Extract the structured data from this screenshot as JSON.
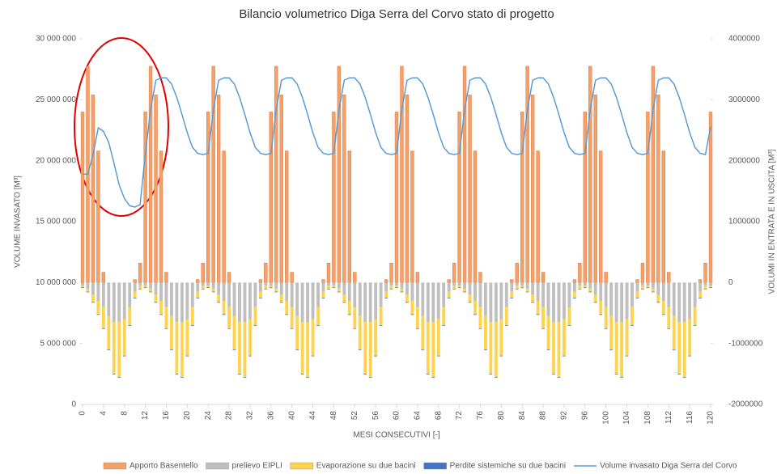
{
  "chart_data": {
    "type": "bar-line",
    "title": "Bilancio volumetrico  Diga Serra del Corvo stato di progetto",
    "xlabel": "MESI CONSECUTIVI [-]",
    "ylabel": "VOLUME INVASATO [M³]",
    "y2label": "VOLUMI IN ENTRATA E IN USCITA [M³]",
    "x": [
      0,
      1,
      2,
      3,
      4,
      5,
      6,
      7,
      8,
      9,
      10,
      11,
      12,
      13,
      14,
      15,
      16,
      17,
      18,
      19,
      20,
      21,
      22,
      23,
      24,
      25,
      26,
      27,
      28,
      29,
      30,
      31,
      32,
      33,
      34,
      35,
      36,
      37,
      38,
      39,
      40,
      41,
      42,
      43,
      44,
      45,
      46,
      47,
      48,
      49,
      50,
      51,
      52,
      53,
      54,
      55,
      56,
      57,
      58,
      59,
      60,
      61,
      62,
      63,
      64,
      65,
      66,
      67,
      68,
      69,
      70,
      71,
      72,
      73,
      74,
      75,
      76,
      77,
      78,
      79,
      80,
      81,
      82,
      83,
      84,
      85,
      86,
      87,
      88,
      89,
      90,
      91,
      92,
      93,
      94,
      95,
      96,
      97,
      98,
      99,
      100,
      101,
      102,
      103,
      104,
      105,
      106,
      107,
      108,
      109,
      110,
      111,
      112,
      113,
      114,
      115,
      116,
      117,
      118,
      119,
      120
    ],
    "xlim": [
      0,
      120
    ],
    "xticks": [
      0,
      4,
      8,
      12,
      16,
      20,
      24,
      28,
      32,
      36,
      40,
      44,
      48,
      52,
      56,
      60,
      64,
      68,
      72,
      76,
      80,
      84,
      88,
      92,
      96,
      100,
      104,
      108,
      112,
      116,
      120
    ],
    "ylim": [
      0,
      30000000
    ],
    "yticks": [
      0,
      {
        "value": 5000000,
        "label": "5 000 000"
      },
      {
        "value": 10000000,
        "label": "10 000 000"
      },
      {
        "value": 15000000,
        "label": "15 000 000"
      },
      {
        "value": 20000000,
        "label": "20 000 000"
      },
      {
        "value": 25000000,
        "label": "25 000 000"
      },
      {
        "value": 30000000,
        "label": "30 000 000"
      }
    ],
    "y2lim": [
      -2000000,
      4000000
    ],
    "y2ticks": [
      -2000000,
      -1000000,
      0,
      1000000,
      2000000,
      3000000,
      4000000
    ],
    "legend": "bottom",
    "series": [
      {
        "name": "Apporto Basentello",
        "color": "#f4a06b",
        "axis": "y2",
        "values": [
          2800000,
          3550000,
          3080000,
          2160000,
          170000,
          0,
          0,
          0,
          0,
          0,
          50000,
          320000,
          2800000,
          3550000,
          3080000,
          2160000,
          170000,
          0,
          0,
          0,
          0,
          0,
          50000,
          320000,
          2800000,
          3550000,
          3080000,
          2160000,
          170000,
          0,
          0,
          0,
          0,
          0,
          50000,
          320000,
          2800000,
          3550000,
          3080000,
          2160000,
          170000,
          0,
          0,
          0,
          0,
          0,
          50000,
          320000,
          2800000,
          3550000,
          3080000,
          2160000,
          170000,
          0,
          0,
          0,
          0,
          0,
          50000,
          320000,
          2800000,
          3550000,
          3080000,
          2160000,
          170000,
          0,
          0,
          0,
          0,
          0,
          50000,
          320000,
          2800000,
          3550000,
          3080000,
          2160000,
          170000,
          0,
          0,
          0,
          0,
          0,
          50000,
          320000,
          2800000,
          3550000,
          3080000,
          2160000,
          170000,
          0,
          0,
          0,
          0,
          0,
          50000,
          320000,
          2800000,
          3550000,
          3080000,
          2160000,
          170000,
          0,
          0,
          0,
          0,
          0,
          50000,
          320000,
          2800000,
          3550000,
          3080000,
          2160000,
          170000,
          0,
          0,
          0,
          0,
          0,
          50000,
          320000,
          2800000
        ]
      },
      {
        "name": "prelievo EIPLI",
        "color": "#bfbfbf",
        "axis": "y2",
        "values": [
          -50000,
          -100000,
          -200000,
          -300000,
          -400000,
          -550000,
          -650000,
          -650000,
          -600000,
          -400000,
          -150000,
          -50000,
          -50000,
          -100000,
          -200000,
          -300000,
          -400000,
          -550000,
          -650000,
          -650000,
          -600000,
          -400000,
          -150000,
          -50000,
          -50000,
          -100000,
          -200000,
          -300000,
          -400000,
          -550000,
          -650000,
          -650000,
          -600000,
          -400000,
          -150000,
          -50000,
          -50000,
          -100000,
          -200000,
          -300000,
          -400000,
          -550000,
          -650000,
          -650000,
          -600000,
          -400000,
          -150000,
          -50000,
          -50000,
          -100000,
          -200000,
          -300000,
          -400000,
          -550000,
          -650000,
          -650000,
          -600000,
          -400000,
          -150000,
          -50000,
          -50000,
          -100000,
          -200000,
          -300000,
          -400000,
          -550000,
          -650000,
          -650000,
          -600000,
          -400000,
          -150000,
          -50000,
          -50000,
          -100000,
          -200000,
          -300000,
          -400000,
          -550000,
          -650000,
          -650000,
          -600000,
          -400000,
          -150000,
          -50000,
          -50000,
          -100000,
          -200000,
          -300000,
          -400000,
          -550000,
          -650000,
          -650000,
          -600000,
          -400000,
          -150000,
          -50000,
          -50000,
          -100000,
          -200000,
          -300000,
          -400000,
          -550000,
          -650000,
          -650000,
          -600000,
          -400000,
          -150000,
          -50000,
          -50000,
          -100000,
          -200000,
          -300000,
          -400000,
          -550000,
          -650000,
          -650000,
          -600000,
          -400000,
          -150000,
          -50000,
          -50000
        ]
      },
      {
        "name": "Evaporazione su due bacini",
        "color": "#ffd34d",
        "axis": "y2",
        "values": [
          -30000,
          -50000,
          -120000,
          -220000,
          -350000,
          -550000,
          -850000,
          -900000,
          -600000,
          -300000,
          -100000,
          -50000,
          -30000,
          -50000,
          -120000,
          -220000,
          -350000,
          -550000,
          -850000,
          -900000,
          -600000,
          -300000,
          -100000,
          -50000,
          -30000,
          -50000,
          -120000,
          -220000,
          -350000,
          -550000,
          -850000,
          -900000,
          -600000,
          -300000,
          -100000,
          -50000,
          -30000,
          -50000,
          -120000,
          -220000,
          -350000,
          -550000,
          -850000,
          -900000,
          -600000,
          -300000,
          -100000,
          -50000,
          -30000,
          -50000,
          -120000,
          -220000,
          -350000,
          -550000,
          -850000,
          -900000,
          -600000,
          -300000,
          -100000,
          -50000,
          -30000,
          -50000,
          -120000,
          -220000,
          -350000,
          -550000,
          -850000,
          -900000,
          -600000,
          -300000,
          -100000,
          -50000,
          -30000,
          -50000,
          -120000,
          -220000,
          -350000,
          -550000,
          -850000,
          -900000,
          -600000,
          -300000,
          -100000,
          -50000,
          -30000,
          -50000,
          -120000,
          -220000,
          -350000,
          -550000,
          -850000,
          -900000,
          -600000,
          -300000,
          -100000,
          -50000,
          -30000,
          -50000,
          -120000,
          -220000,
          -350000,
          -550000,
          -850000,
          -900000,
          -600000,
          -300000,
          -100000,
          -50000,
          -30000,
          -50000,
          -120000,
          -220000,
          -350000,
          -550000,
          -850000,
          -900000,
          -600000,
          -300000,
          -100000,
          -50000,
          -30000
        ]
      },
      {
        "name": "Perdite sistemiche su due bacini",
        "color": "#4472c4",
        "axis": "y2",
        "values": [
          -10000,
          -10000,
          -10000,
          -10000,
          -10000,
          -10000,
          -10000,
          -10000,
          -10000,
          -10000,
          -10000,
          -10000,
          -10000,
          -10000,
          -10000,
          -10000,
          -10000,
          -10000,
          -10000,
          -10000,
          -10000,
          -10000,
          -10000,
          -10000,
          -10000,
          -10000,
          -10000,
          -10000,
          -10000,
          -10000,
          -10000,
          -10000,
          -10000,
          -10000,
          -10000,
          -10000,
          -10000,
          -10000,
          -10000,
          -10000,
          -10000,
          -10000,
          -10000,
          -10000,
          -10000,
          -10000,
          -10000,
          -10000,
          -10000,
          -10000,
          -10000,
          -10000,
          -10000,
          -10000,
          -10000,
          -10000,
          -10000,
          -10000,
          -10000,
          -10000,
          -10000,
          -10000,
          -10000,
          -10000,
          -10000,
          -10000,
          -10000,
          -10000,
          -10000,
          -10000,
          -10000,
          -10000,
          -10000,
          -10000,
          -10000,
          -10000,
          -10000,
          -10000,
          -10000,
          -10000,
          -10000,
          -10000,
          -10000,
          -10000,
          -10000,
          -10000,
          -10000,
          -10000,
          -10000,
          -10000,
          -10000,
          -10000,
          -10000,
          -10000,
          -10000,
          -10000,
          -10000,
          -10000,
          -10000,
          -10000,
          -10000,
          -10000,
          -10000,
          -10000,
          -10000,
          -10000,
          -10000,
          -10000,
          -10000,
          -10000,
          -10000,
          -10000,
          -10000,
          -10000,
          -10000,
          -10000,
          -10000,
          -10000,
          -10000,
          -10000,
          -10000
        ]
      },
      {
        "name": "Volume invasato Diga Serra del Corvo",
        "color": "#5b9bd5",
        "axis": "y",
        "line": true,
        "values": [
          18900000,
          18900000,
          20500000,
          22700000,
          22400000,
          21500000,
          19800000,
          18000000,
          16900000,
          16300000,
          16200000,
          16400000,
          20600000,
          24200000,
          26600000,
          26800000,
          26800000,
          26300000,
          25200000,
          23800000,
          22300000,
          21100000,
          20600000,
          20500000,
          20600000,
          24200000,
          26600000,
          26800000,
          26800000,
          26300000,
          25200000,
          23800000,
          22300000,
          21100000,
          20600000,
          20500000,
          20600000,
          24200000,
          26600000,
          26800000,
          26800000,
          26300000,
          25200000,
          23800000,
          22300000,
          21100000,
          20600000,
          20500000,
          20600000,
          24200000,
          26600000,
          26800000,
          26800000,
          26300000,
          25200000,
          23800000,
          22300000,
          21100000,
          20600000,
          20500000,
          20600000,
          24200000,
          26600000,
          26800000,
          26800000,
          26300000,
          25200000,
          23800000,
          22300000,
          21100000,
          20600000,
          20500000,
          20600000,
          24200000,
          26600000,
          26800000,
          26800000,
          26300000,
          25200000,
          23800000,
          22300000,
          21100000,
          20600000,
          20500000,
          20600000,
          24200000,
          26600000,
          26800000,
          26800000,
          26300000,
          25200000,
          23800000,
          22300000,
          21100000,
          20600000,
          20500000,
          20600000,
          24200000,
          26600000,
          26800000,
          26800000,
          26300000,
          25200000,
          23800000,
          22300000,
          21100000,
          20600000,
          20500000,
          20600000,
          24200000,
          26600000,
          26800000,
          26800000,
          26300000,
          25200000,
          23800000,
          22300000,
          21100000,
          20600000,
          20500000,
          22800000
        ]
      }
    ]
  }
}
